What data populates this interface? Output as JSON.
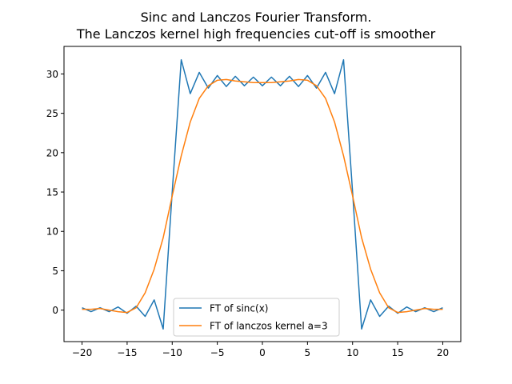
{
  "chart_data": {
    "type": "line",
    "title_lines": [
      "Sinc and Lanczos Fourier Transform.",
      "The Lanczos kernel high frequencies cut-off is smoother"
    ],
    "xlabel": "",
    "ylabel": "",
    "xlim": [
      -22,
      22
    ],
    "ylim": [
      -4,
      33.5
    ],
    "xticks": [
      -20,
      -15,
      -10,
      -5,
      0,
      5,
      10,
      15,
      20
    ],
    "xtick_labels": [
      "−20",
      "−15",
      "−10",
      "−5",
      "0",
      "5",
      "10",
      "15",
      "20"
    ],
    "yticks": [
      0,
      5,
      10,
      15,
      20,
      25,
      30
    ],
    "ytick_labels": [
      "0",
      "5",
      "10",
      "15",
      "20",
      "25",
      "30"
    ],
    "grid": false,
    "legend_position": "lower-center",
    "x": [
      -20,
      -19,
      -18,
      -17,
      -16,
      -15,
      -14,
      -13,
      -12,
      -11,
      -10,
      -9,
      -8,
      -7,
      -6,
      -5,
      -4,
      -3,
      -2,
      -1,
      0,
      1,
      2,
      3,
      4,
      5,
      6,
      7,
      8,
      9,
      10,
      11,
      12,
      13,
      14,
      15,
      16,
      17,
      18,
      19,
      20
    ],
    "series": [
      {
        "name": "FT of sinc(x)",
        "color": "#1f77b4",
        "values": [
          0.3,
          -0.2,
          0.3,
          -0.2,
          0.4,
          -0.4,
          0.5,
          -0.8,
          1.3,
          -2.4,
          15.0,
          31.8,
          27.5,
          30.2,
          28.2,
          29.8,
          28.4,
          29.7,
          28.5,
          29.6,
          28.5,
          29.6,
          28.5,
          29.7,
          28.4,
          29.8,
          28.2,
          30.2,
          27.5,
          31.8,
          15.0,
          -2.4,
          1.3,
          -0.8,
          0.5,
          -0.4,
          0.4,
          -0.2,
          0.3,
          -0.2,
          0.3
        ]
      },
      {
        "name": "FT of lanczos kernel a=3",
        "color": "#ff7f0e",
        "values": [
          0.1,
          0.1,
          0.2,
          0.0,
          -0.2,
          -0.3,
          0.3,
          2.2,
          5.2,
          9.2,
          14.5,
          19.6,
          23.9,
          26.9,
          28.5,
          29.2,
          29.3,
          29.1,
          29.0,
          28.9,
          28.9,
          28.9,
          29.0,
          29.1,
          29.3,
          29.2,
          28.5,
          26.9,
          23.9,
          19.6,
          14.5,
          9.2,
          5.2,
          2.2,
          0.3,
          -0.3,
          -0.2,
          0.0,
          0.2,
          0.1,
          0.1
        ]
      }
    ]
  }
}
